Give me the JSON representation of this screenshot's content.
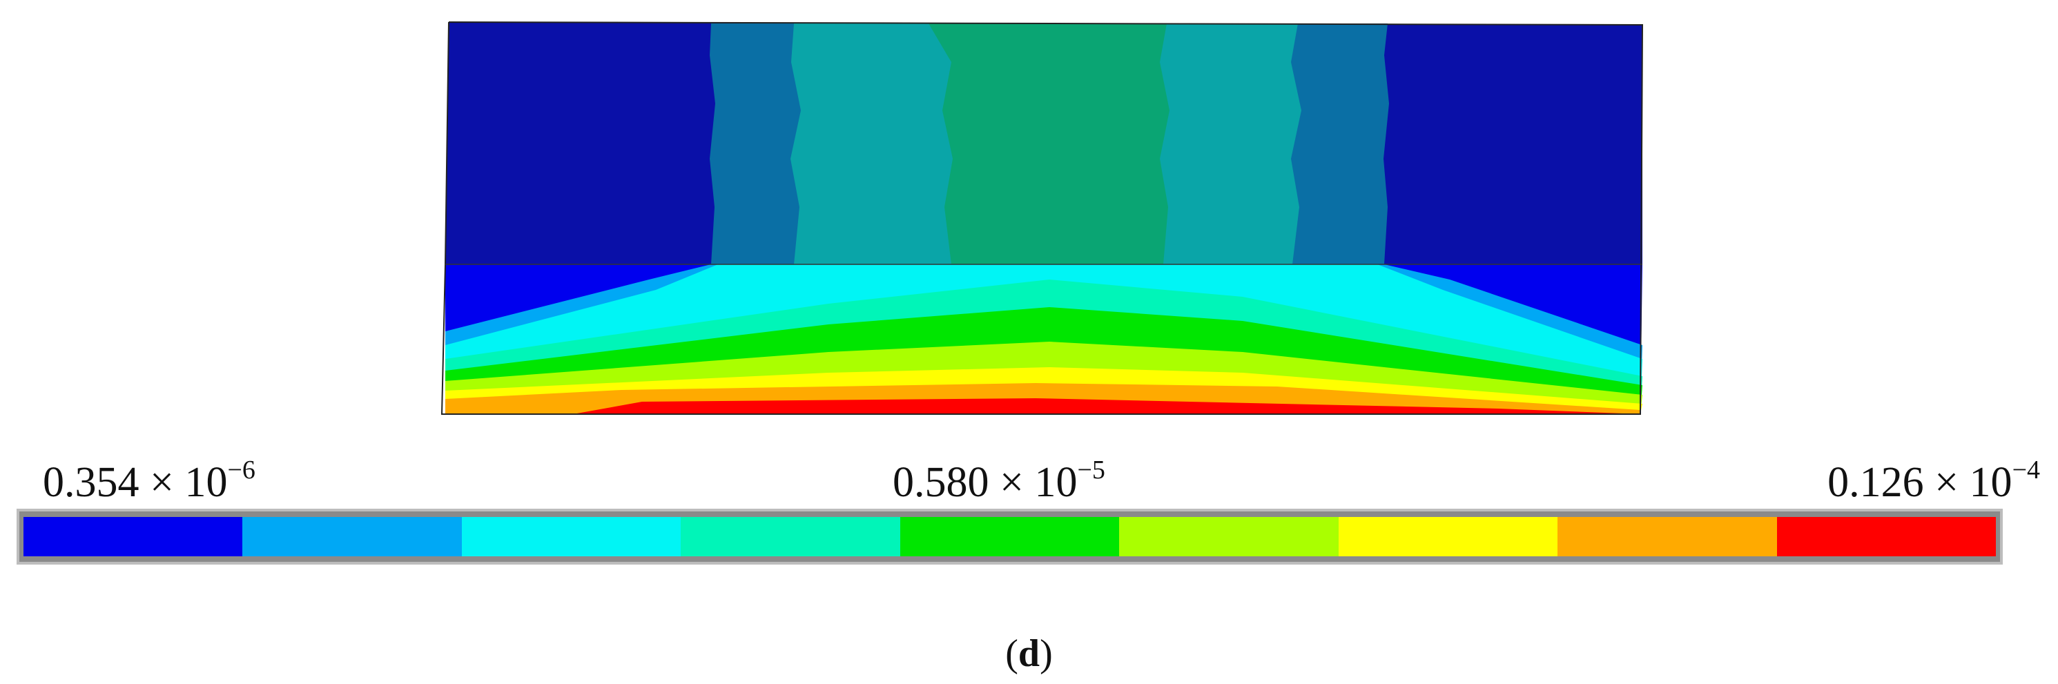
{
  "colorbar": {
    "min_label": {
      "mantissa": "0.354 × 10",
      "exponent": "−6"
    },
    "mid_label": {
      "mantissa": "0.580 × 10",
      "exponent": "−5"
    },
    "max_label": {
      "mantissa": "0.126 × 10",
      "exponent": "−4"
    },
    "colors": [
      "#0000ee",
      "#00a8f5",
      "#00f5f5",
      "#00f5b8",
      "#00e600",
      "#aaff00",
      "#ffff00",
      "#ffaa00",
      "#ff0000"
    ]
  },
  "plot_colors": {
    "dark_blue": "#0a10a8",
    "teal_dark": "#0a6fa5",
    "teal": "#0aa5a8",
    "green_teal": "#0aa573"
  },
  "panel_label": {
    "open": "(",
    "letter": "d",
    "close": ")"
  }
}
